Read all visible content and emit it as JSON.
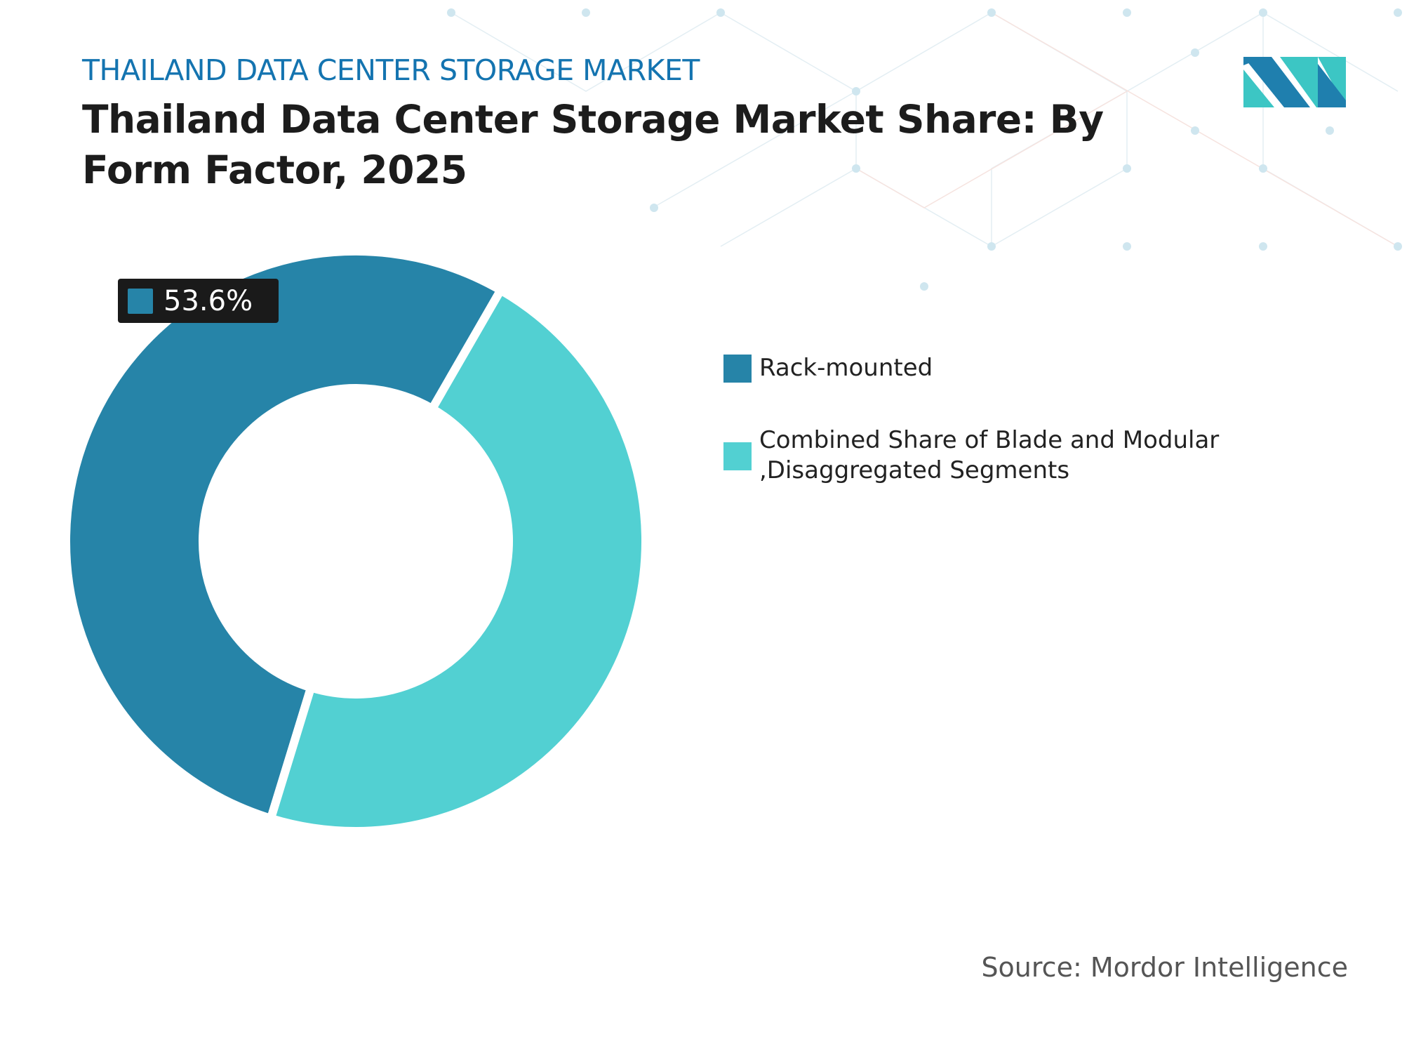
{
  "header": {
    "subtitle": "THAILAND DATA CENTER STORAGE MARKET",
    "title": "Thailand  Data Center Storage Market Share: By Form Factor, 2025"
  },
  "chart_data": {
    "type": "pie",
    "donut": true,
    "categories": [
      "Rack-mounted",
      "Combined Share of Blade and Modular ,Disaggregated Segments"
    ],
    "values": [
      53.6,
      46.4
    ],
    "colors": [
      "#2684a8",
      "#52d0d2"
    ],
    "data_labels": [
      {
        "category": "Rack-mounted",
        "text": "53.6%"
      }
    ],
    "legend_placement": "right"
  },
  "legend": [
    {
      "label": "Rack-mounted",
      "color": "#2684a8"
    },
    {
      "label": "Combined Share of Blade and Modular ,Disaggregated Segments",
      "color": "#52d0d2"
    }
  ],
  "footer": {
    "source": "Source: Mordor Intelligence"
  },
  "logo": {
    "text": "Mordor Intelligence",
    "colors": [
      "#1f7fae",
      "#3cc6c4"
    ]
  }
}
